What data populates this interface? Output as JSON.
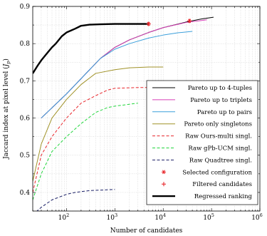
{
  "chart_data": {
    "type": "line",
    "xlabel": "Number of candidates",
    "ylabel": "Jaccard index at pixel level (J_p)",
    "xscale": "log",
    "xlim": [
      20,
      1000000
    ],
    "ylim": [
      0.35,
      0.9
    ],
    "xticks": [
      {
        "value": 100,
        "base": "10",
        "exp": "2"
      },
      {
        "value": 1000,
        "base": "10",
        "exp": "3"
      },
      {
        "value": 10000,
        "base": "10",
        "exp": "4"
      },
      {
        "value": 100000,
        "base": "10",
        "exp": "5"
      },
      {
        "value": 1000000,
        "base": "10",
        "exp": "6"
      }
    ],
    "yticks": [
      0.4,
      0.5,
      0.6,
      0.7,
      0.8,
      0.9
    ],
    "yticklabels": [
      "0.4",
      "0.5",
      "0.6",
      "0.7",
      "0.8",
      "0.9"
    ],
    "grid": true,
    "legend_position": "bottom-right",
    "series": [
      {
        "name": "Pareto up to 4-tuples",
        "color": "#000000",
        "dash": "solid",
        "width": 1,
        "x": [
          30,
          100,
          500,
          1000,
          2000,
          5000,
          10000,
          30000,
          60000,
          110000
        ],
        "y": [
          0.6,
          0.665,
          0.76,
          0.79,
          0.81,
          0.83,
          0.843,
          0.858,
          0.866,
          0.871
        ]
      },
      {
        "name": "Pareto up to triplets",
        "color": "#d63fb7",
        "dash": "solid",
        "width": 1,
        "x": [
          30,
          100,
          500,
          1000,
          2000,
          5000,
          10000,
          30000,
          60000,
          80000
        ],
        "y": [
          0.6,
          0.665,
          0.76,
          0.79,
          0.81,
          0.83,
          0.843,
          0.857,
          0.862,
          0.864
        ]
      },
      {
        "name": "Pareto up to pairs",
        "color": "#3b9fdb",
        "dash": "solid",
        "width": 1,
        "x": [
          30,
          100,
          500,
          1000,
          2000,
          5000,
          10000,
          20000,
          40000
        ],
        "y": [
          0.6,
          0.665,
          0.76,
          0.785,
          0.8,
          0.815,
          0.823,
          0.829,
          0.833
        ]
      },
      {
        "name": "Pareto only singletons",
        "color": "#a09228",
        "dash": "solid",
        "width": 1,
        "x": [
          20,
          30,
          50,
          100,
          200,
          400,
          1000,
          2000,
          5000,
          10000
        ],
        "y": [
          0.43,
          0.53,
          0.6,
          0.65,
          0.69,
          0.72,
          0.73,
          0.735,
          0.737,
          0.737
        ]
      },
      {
        "name": "Raw Ours-multi singl.",
        "color": "#e8262b",
        "dash": "4,2.5",
        "width": 1,
        "x": [
          20,
          30,
          50,
          100,
          200,
          400,
          700,
          1000,
          3000,
          10000
        ],
        "y": [
          0.4,
          0.5,
          0.55,
          0.6,
          0.64,
          0.66,
          0.675,
          0.68,
          0.682,
          0.682
        ]
      },
      {
        "name": "Raw gPb-UCM singl.",
        "color": "#22d63d",
        "dash": "4,2.5",
        "width": 1,
        "x": [
          20,
          30,
          50,
          100,
          200,
          400,
          700,
          1000,
          3000
        ],
        "y": [
          0.38,
          0.45,
          0.51,
          0.55,
          0.585,
          0.615,
          0.628,
          0.632,
          0.64
        ]
      },
      {
        "name": "Raw Quadtree singl.",
        "color": "#1a1f66",
        "dash": "4,2.5",
        "width": 1,
        "x": [
          20,
          30,
          50,
          100,
          150,
          300,
          1000
        ],
        "y": [
          0.34,
          0.36,
          0.38,
          0.395,
          0.4,
          0.405,
          0.408
        ]
      },
      {
        "name": "Regressed ranking",
        "color": "#000000",
        "dash": "solid",
        "width": 2.4,
        "x": [
          20,
          25,
          30,
          40,
          50,
          60,
          80,
          100,
          150,
          200,
          300,
          500,
          1000,
          2000,
          5000
        ],
        "y": [
          0.72,
          0.74,
          0.755,
          0.775,
          0.79,
          0.8,
          0.82,
          0.83,
          0.84,
          0.848,
          0.851,
          0.852,
          0.853,
          0.853,
          0.853
        ]
      }
    ],
    "markers": [
      {
        "name": "Selected configuration",
        "symbol": "*",
        "color": "#e8262b",
        "x": [
          5000,
          35000
        ],
        "y": [
          0.853,
          0.861
        ]
      },
      {
        "name": "Filtered candidates",
        "symbol": "+",
        "color": "#e8262b",
        "x": [
          5000,
          35000
        ],
        "y": [
          0.853,
          0.861
        ]
      }
    ],
    "legend_order": [
      "Pareto up to 4-tuples",
      "Pareto up to triplets",
      "Pareto up to pairs",
      "Pareto only singletons",
      "Raw Ours-multi singl.",
      "Raw gPb-UCM singl.",
      "Raw Quadtree singl.",
      "Selected configuration",
      "Filtered candidates",
      "Regressed ranking"
    ]
  }
}
